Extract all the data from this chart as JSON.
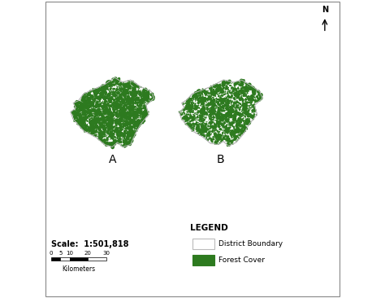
{
  "label_A": "A",
  "label_B": "B",
  "scale_text": "Scale:  1:501,818",
  "scale_ticks": [
    0,
    5,
    10,
    20,
    30
  ],
  "scale_label": "Kilometers",
  "legend_title": "LEGEND",
  "legend_items": [
    {
      "label": "District Boundary",
      "facecolor": "#ffffff",
      "edgecolor": "#bbbbbb"
    },
    {
      "label": "Forest Cover",
      "facecolor": "#2d7a1f",
      "edgecolor": "#2d7a1f"
    }
  ],
  "forest_color": "#2d7a1f",
  "boundary_color": "#bbbbbb",
  "background": "#ffffff",
  "fig_width": 4.74,
  "fig_height": 3.66,
  "dpi": 100
}
